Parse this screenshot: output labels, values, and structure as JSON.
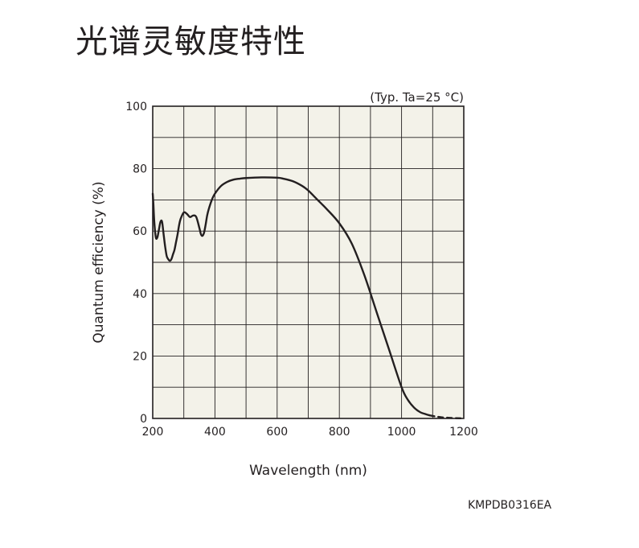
{
  "page": {
    "title": "光谱灵敏度特性",
    "figure_code": "KMPDB0316EA"
  },
  "chart_data": {
    "type": "line",
    "title": "",
    "annotation": "(Typ. Ta=25 °C)",
    "xlabel": "Wavelength (nm)",
    "ylabel": "Quantum efficiency (%)",
    "xlim": [
      200,
      1200
    ],
    "ylim": [
      0,
      100
    ],
    "xticks": [
      200,
      400,
      600,
      800,
      1000,
      1200
    ],
    "yticks": [
      0,
      20,
      40,
      60,
      80,
      100
    ],
    "x_gridlines": [
      300,
      400,
      500,
      600,
      700,
      800,
      900,
      1000,
      1100
    ],
    "y_gridlines": [
      10,
      20,
      30,
      40,
      50,
      60,
      70,
      80,
      90
    ],
    "grid": true,
    "background_color": "#f3f2e9",
    "line_color": "#231f20",
    "series": [
      {
        "style": "solid",
        "x": [
          200,
          202,
          205,
          210,
          215,
          220,
          225,
          230,
          235,
          240,
          245,
          250,
          255,
          260,
          265,
          270,
          275,
          280,
          285,
          290,
          300,
          310,
          320,
          330,
          340,
          350,
          355,
          360,
          365,
          370,
          375,
          380,
          390,
          400,
          420,
          440,
          460,
          480,
          500,
          550,
          600,
          620,
          650,
          680,
          700,
          730,
          760,
          800,
          840,
          880,
          920,
          960,
          1000,
          1020,
          1040,
          1060,
          1080,
          1090
        ],
        "y": [
          72,
          69,
          63,
          58,
          58,
          60.5,
          63,
          63,
          59,
          55,
          52,
          51,
          50.5,
          51,
          52.5,
          54,
          56.5,
          59,
          62,
          64,
          66,
          65.5,
          64.5,
          65,
          64.5,
          61,
          59,
          58.5,
          59.5,
          62,
          65,
          67,
          70,
          72,
          74.5,
          75.8,
          76.5,
          76.8,
          77,
          77.2,
          77.1,
          76.8,
          76,
          74.5,
          73,
          70,
          67,
          62.5,
          56,
          46,
          34,
          22,
          10,
          6,
          3.5,
          2,
          1.3,
          1
        ]
      },
      {
        "style": "dashed",
        "x": [
          1090,
          1110,
          1130,
          1150,
          1170,
          1190
        ],
        "y": [
          1,
          0.6,
          0.35,
          0.2,
          0.1,
          0.05
        ]
      }
    ]
  }
}
